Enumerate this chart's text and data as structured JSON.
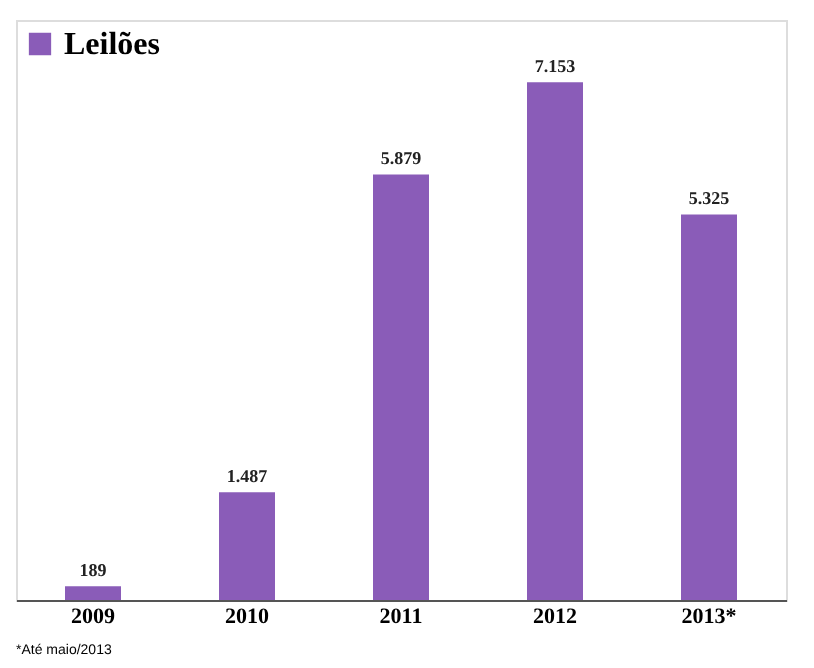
{
  "chart_data": {
    "type": "bar",
    "categories": [
      "2009",
      "2010",
      "2011",
      "2012",
      "2013*"
    ],
    "series": [
      {
        "name": "Leilões",
        "color": "#8a5cb8",
        "values": [
          189,
          1487,
          5879,
          7153,
          5325
        ],
        "value_labels": [
          "189",
          "1.487",
          "5.879",
          "7.153",
          "5.325"
        ]
      }
    ],
    "legend": "top left",
    "grid": false,
    "annotations": [
      "*Até maio/2013"
    ]
  }
}
